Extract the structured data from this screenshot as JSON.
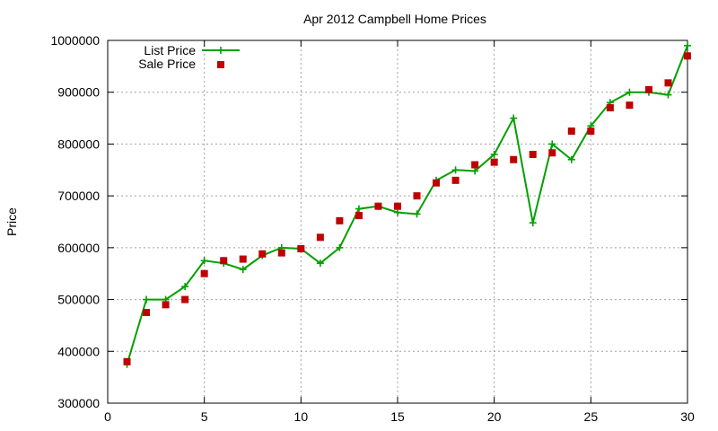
{
  "chart_data": {
    "type": "line",
    "title": "Apr 2012 Campbell Home Prices",
    "xlabel": "",
    "ylabel": "Price",
    "xlim": [
      0,
      30
    ],
    "ylim": [
      300000,
      1000000
    ],
    "xticks": [
      0,
      5,
      10,
      15,
      20,
      25,
      30
    ],
    "yticks": [
      300000,
      400000,
      500000,
      600000,
      700000,
      800000,
      900000,
      1000000
    ],
    "grid": true,
    "legend_position": "top-left",
    "series": [
      {
        "name": "List Price",
        "style": "line-plus",
        "color": "#00a000",
        "x": [
          1,
          2,
          3,
          4,
          5,
          6,
          7,
          8,
          9,
          10,
          11,
          12,
          13,
          14,
          15,
          16,
          17,
          18,
          19,
          20,
          21,
          22,
          23,
          24,
          25,
          26,
          27,
          28,
          29,
          30
        ],
        "y": [
          375000,
          500000,
          500000,
          525000,
          575000,
          570000,
          558000,
          585000,
          600000,
          598000,
          570000,
          600000,
          675000,
          680000,
          668000,
          665000,
          730000,
          750000,
          748000,
          780000,
          850000,
          648000,
          800000,
          770000,
          835000,
          880000,
          900000,
          900000,
          895000,
          990000
        ]
      },
      {
        "name": "Sale Price",
        "style": "square-markers",
        "color": "#c00000",
        "x": [
          1,
          2,
          3,
          4,
          5,
          6,
          7,
          8,
          9,
          10,
          11,
          12,
          13,
          14,
          15,
          16,
          17,
          18,
          19,
          20,
          21,
          22,
          23,
          24,
          25,
          26,
          27,
          28,
          29,
          30
        ],
        "y": [
          380000,
          475000,
          490000,
          500000,
          550000,
          575000,
          578000,
          588000,
          590000,
          598000,
          620000,
          652000,
          662000,
          680000,
          680000,
          700000,
          725000,
          730000,
          760000,
          765000,
          770000,
          780000,
          783000,
          825000,
          825000,
          870000,
          875000,
          905000,
          918000,
          970000
        ]
      }
    ]
  }
}
